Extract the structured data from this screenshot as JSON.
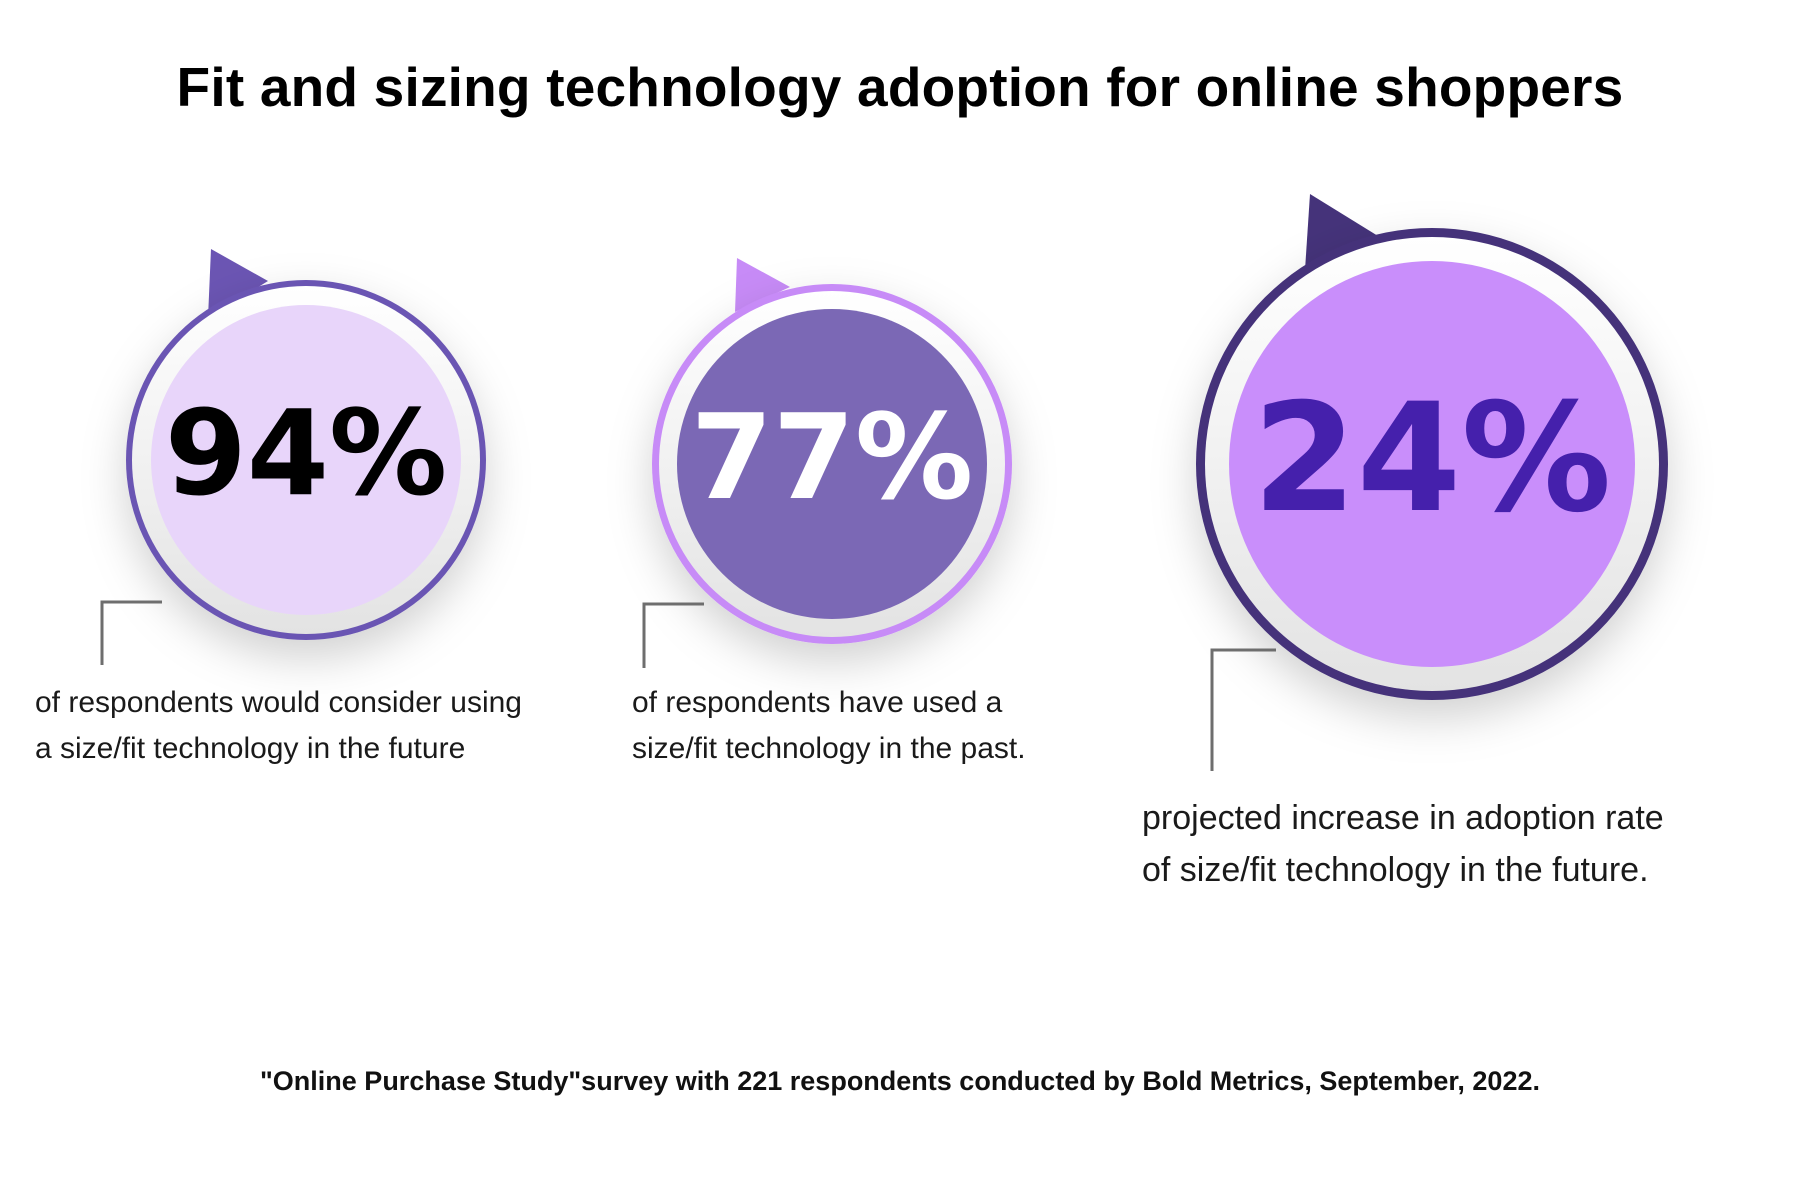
{
  "title": "Fit and sizing technology adoption for online shoppers",
  "stats": [
    {
      "value": "94%",
      "description": [
        "of respondents would consider using",
        "a size/fit technology in the future"
      ],
      "ring_color": "#6B55B3",
      "fill_color": "#E8D5FA",
      "pointer_color": "#6B55B3",
      "text_color": "#000000"
    },
    {
      "value": "77%",
      "description": [
        "of respondents have used a",
        "size/fit technology in the past."
      ],
      "ring_color": "#C78BF7",
      "fill_color": "#7B68B5",
      "pointer_color": "#C78BF7",
      "text_color": "#FFFFFF"
    },
    {
      "value": "24%",
      "description": [
        "projected increase in adoption rate",
        "of size/fit technology in the future."
      ],
      "ring_color": "#45337A",
      "fill_color": "#C98EFB",
      "pointer_color": "#45337A",
      "text_color": "#4520AC"
    }
  ],
  "source": "\"Online Purchase Study\"survey with 221 respondents conducted by Bold Metrics, September, 2022."
}
